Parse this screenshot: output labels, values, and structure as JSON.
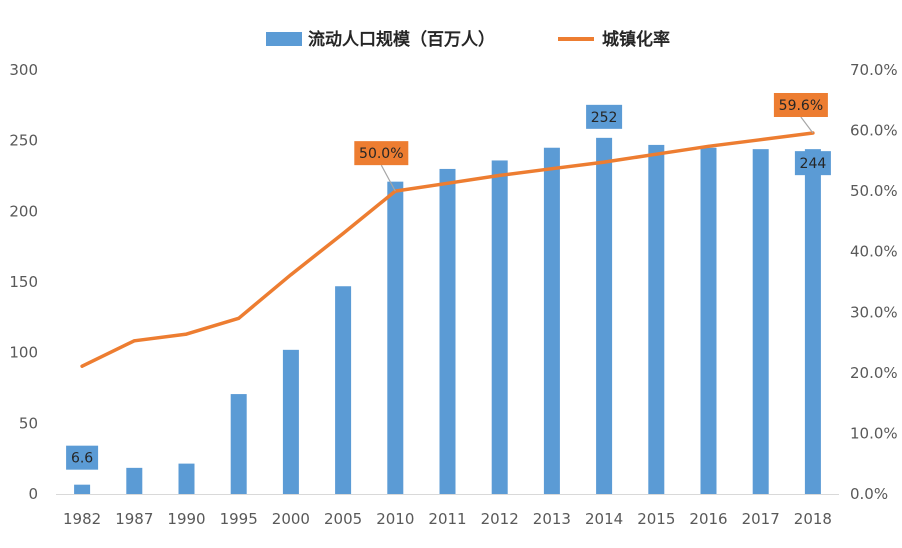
{
  "chart_data": {
    "type": "bar",
    "categories": [
      "1982",
      "1987",
      "1990",
      "1995",
      "2000",
      "2005",
      "2010",
      "2011",
      "2012",
      "2013",
      "2014",
      "2015",
      "2016",
      "2017",
      "2018"
    ],
    "series": [
      {
        "name": "流动人口规模（百万人）",
        "type": "bar",
        "axis": "left",
        "color": "#5B9BD5",
        "values": [
          6.6,
          18.5,
          21.5,
          70.7,
          102,
          147,
          221,
          230,
          236,
          245,
          252,
          247,
          245,
          244,
          244
        ]
      },
      {
        "name": "城镇化率",
        "type": "line",
        "axis": "right",
        "color": "#ED7D31",
        "values": [
          21.1,
          25.3,
          26.4,
          29.0,
          36.2,
          43.0,
          50.0,
          51.3,
          52.6,
          53.7,
          54.8,
          56.1,
          57.4,
          58.5,
          59.6
        ]
      }
    ],
    "y_left": {
      "min": 0,
      "max": 300,
      "step": 50,
      "ticks": [
        "0",
        "50",
        "100",
        "150",
        "200",
        "250",
        "300"
      ]
    },
    "y_right": {
      "min": 0,
      "max": 70,
      "step": 10,
      "ticks": [
        "0.0%",
        "10.0%",
        "20.0%",
        "30.0%",
        "40.0%",
        "50.0%",
        "60.0%",
        "70.0%"
      ]
    },
    "legend_position": "top",
    "grid": false,
    "data_labels": [
      {
        "series": 0,
        "index": 0,
        "text": "6.6",
        "color": "#5B9BD5"
      },
      {
        "series": 0,
        "index": 10,
        "text": "252",
        "color": "#5B9BD5"
      },
      {
        "series": 0,
        "index": 14,
        "text": "244",
        "color": "#5B9BD5"
      },
      {
        "series": 1,
        "index": 6,
        "text": "50.0%",
        "color": "#ED7D31"
      },
      {
        "series": 1,
        "index": 14,
        "text": "59.6%",
        "color": "#ED7D31"
      }
    ]
  }
}
